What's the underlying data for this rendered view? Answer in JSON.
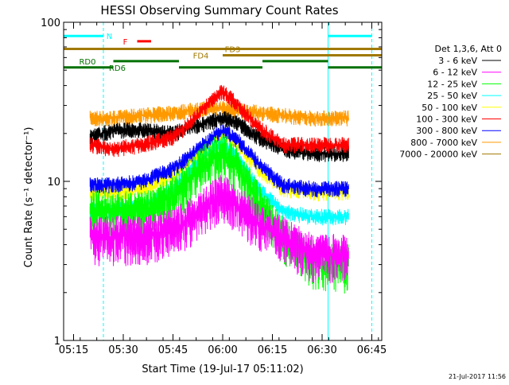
{
  "chart_data": {
    "type": "line",
    "title": "HESSI Observing Summary Count Rates",
    "xlabel": "Start Time (19-Jul-17 05:11:02)",
    "ylabel": "Count Rate (s⁻¹ detector⁻¹)",
    "footer": "21-Jul-2017 11:56",
    "y_scale": "log",
    "ylim": [
      1,
      100
    ],
    "y_ticks": [
      {
        "value": 1,
        "label": "1"
      },
      {
        "value": 10,
        "label": "10"
      },
      {
        "value": 100,
        "label": "100"
      }
    ],
    "xlim": [
      5.2,
      6.8
    ],
    "x_ticks": [
      {
        "value": 5.25,
        "label": "05:15"
      },
      {
        "value": 5.5,
        "label": "05:30"
      },
      {
        "value": 5.75,
        "label": "05:45"
      },
      {
        "value": 6.0,
        "label": "06:00"
      },
      {
        "value": 6.25,
        "label": "06:15"
      },
      {
        "value": 6.5,
        "label": "06:30"
      },
      {
        "value": 6.75,
        "label": "06:45"
      }
    ],
    "legend_header": "Det 1,3,6, Att 0",
    "legend_position": "right",
    "data_start": 5.333,
    "data_end": 6.633,
    "series": [
      {
        "name": "3 - 6 keV",
        "color": "#000000",
        "x": [
          5.333,
          5.45,
          5.6,
          5.75,
          5.85,
          5.95,
          6.0,
          6.08,
          6.18,
          6.3,
          6.45,
          6.633
        ],
        "y": [
          19,
          21,
          21,
          20,
          22,
          24,
          25,
          23,
          19,
          16,
          15,
          15
        ]
      },
      {
        "name": "6 - 12 keV",
        "color": "#ff00ff",
        "x": [
          5.333,
          5.45,
          5.6,
          5.75,
          5.85,
          5.95,
          6.0,
          6.08,
          6.18,
          6.3,
          6.45,
          6.633
        ],
        "y": [
          4.5,
          4.5,
          4.5,
          5,
          6,
          7.5,
          8.5,
          7,
          5.5,
          4.5,
          3.5,
          3.5
        ]
      },
      {
        "name": "12 - 25 keV",
        "color": "#00ff00",
        "x": [
          5.333,
          5.45,
          5.6,
          5.75,
          5.85,
          5.95,
          6.0,
          6.08,
          6.18,
          6.3,
          6.45,
          6.633
        ],
        "y": [
          6.5,
          6.5,
          6.5,
          8,
          11,
          14,
          15,
          12,
          7.5,
          4.5,
          3.2,
          3
        ]
      },
      {
        "name": "25 - 50 keV",
        "color": "#00ffff",
        "x": [
          5.333,
          5.45,
          5.6,
          5.75,
          5.85,
          5.95,
          6.0,
          6.08,
          6.18,
          6.3,
          6.45,
          6.633
        ],
        "y": [
          6.5,
          6.5,
          7,
          9,
          12,
          16,
          17,
          14,
          9,
          6.5,
          6,
          6
        ]
      },
      {
        "name": "50 - 100 keV",
        "color": "#ffff00",
        "x": [
          5.333,
          5.45,
          5.6,
          5.75,
          5.85,
          5.95,
          6.0,
          6.08,
          6.18,
          6.3,
          6.45,
          6.633
        ],
        "y": [
          8.5,
          8.5,
          9,
          11,
          14,
          18,
          20,
          17,
          12,
          9,
          8.5,
          8.5
        ]
      },
      {
        "name": "100 - 300 keV",
        "color": "#ff0000",
        "x": [
          5.333,
          5.45,
          5.6,
          5.75,
          5.85,
          5.95,
          6.0,
          6.08,
          6.18,
          6.3,
          6.45,
          6.633
        ],
        "y": [
          17,
          16,
          17,
          19,
          24,
          33,
          37,
          30,
          22,
          17,
          17,
          17
        ]
      },
      {
        "name": "300 - 800 keV",
        "color": "#0000ff",
        "x": [
          5.333,
          5.45,
          5.6,
          5.75,
          5.85,
          5.95,
          6.0,
          6.08,
          6.18,
          6.3,
          6.45,
          6.633
        ],
        "y": [
          9.5,
          9.5,
          10,
          12,
          15,
          19,
          21,
          18,
          13,
          9.5,
          9,
          9
        ]
      },
      {
        "name": "800 - 7000 keV",
        "color": "#ff9900",
        "x": [
          5.333,
          5.45,
          5.6,
          5.75,
          5.85,
          5.95,
          6.0,
          6.08,
          6.18,
          6.3,
          6.45,
          6.633
        ],
        "y": [
          25,
          25,
          26,
          27,
          28,
          29,
          29,
          28,
          27,
          26,
          25,
          25
        ]
      },
      {
        "name": "7000 - 20000 keV",
        "color": "#a07800",
        "x": [],
        "y": []
      }
    ],
    "flag_bars": [
      {
        "label": "N",
        "color": "#00ffff",
        "x0": 5.2,
        "x1": 5.4,
        "y": 82,
        "label_at": 5.43
      },
      {
        "label": "",
        "color": "#00ffff",
        "x0": 6.53,
        "x1": 6.75,
        "y": 82,
        "label_at": 6.6
      },
      {
        "label": "F",
        "color": "#ff0000",
        "x0": 5.57,
        "x1": 5.64,
        "y": 76,
        "label_at": 5.51
      },
      {
        "label": "FD3",
        "color": "#a07800",
        "x0": 5.2,
        "x1": 6.0,
        "y": 68,
        "label_at": 6.05
      },
      {
        "label": "",
        "color": "#a07800",
        "x0": 6.0,
        "x1": 6.8,
        "y": 68,
        "label_at": 6.4
      },
      {
        "label": "FD4",
        "color": "#a07800",
        "x0": 6.0,
        "x1": 6.8,
        "y": 62,
        "label_at": 5.89
      },
      {
        "label": "RD0",
        "color": "#007000",
        "x0": 5.45,
        "x1": 5.78,
        "y": 57,
        "label_at": 5.32
      },
      {
        "label": "",
        "color": "#007000",
        "x0": 6.2,
        "x1": 6.53,
        "y": 57,
        "label_at": 6.3
      },
      {
        "label": "RD6",
        "color": "#007000",
        "x0": 5.2,
        "x1": 5.45,
        "y": 52,
        "label_at": 5.47
      },
      {
        "label": "",
        "color": "#007000",
        "x0": 5.78,
        "x1": 6.2,
        "y": 52,
        "label_at": 6.0
      },
      {
        "label": "",
        "color": "#007000",
        "x0": 6.53,
        "x1": 6.8,
        "y": 52,
        "label_at": 6.65
      }
    ],
    "markers": [
      {
        "color": "#00ffff",
        "style": "solid",
        "x": 5.2
      },
      {
        "color": "#00ffff",
        "style": "dashed",
        "x": 5.4
      },
      {
        "color": "#00ffff",
        "style": "solid",
        "x": 6.53
      },
      {
        "color": "#00ffff",
        "style": "dashed",
        "x": 6.75
      }
    ],
    "grid": false
  }
}
